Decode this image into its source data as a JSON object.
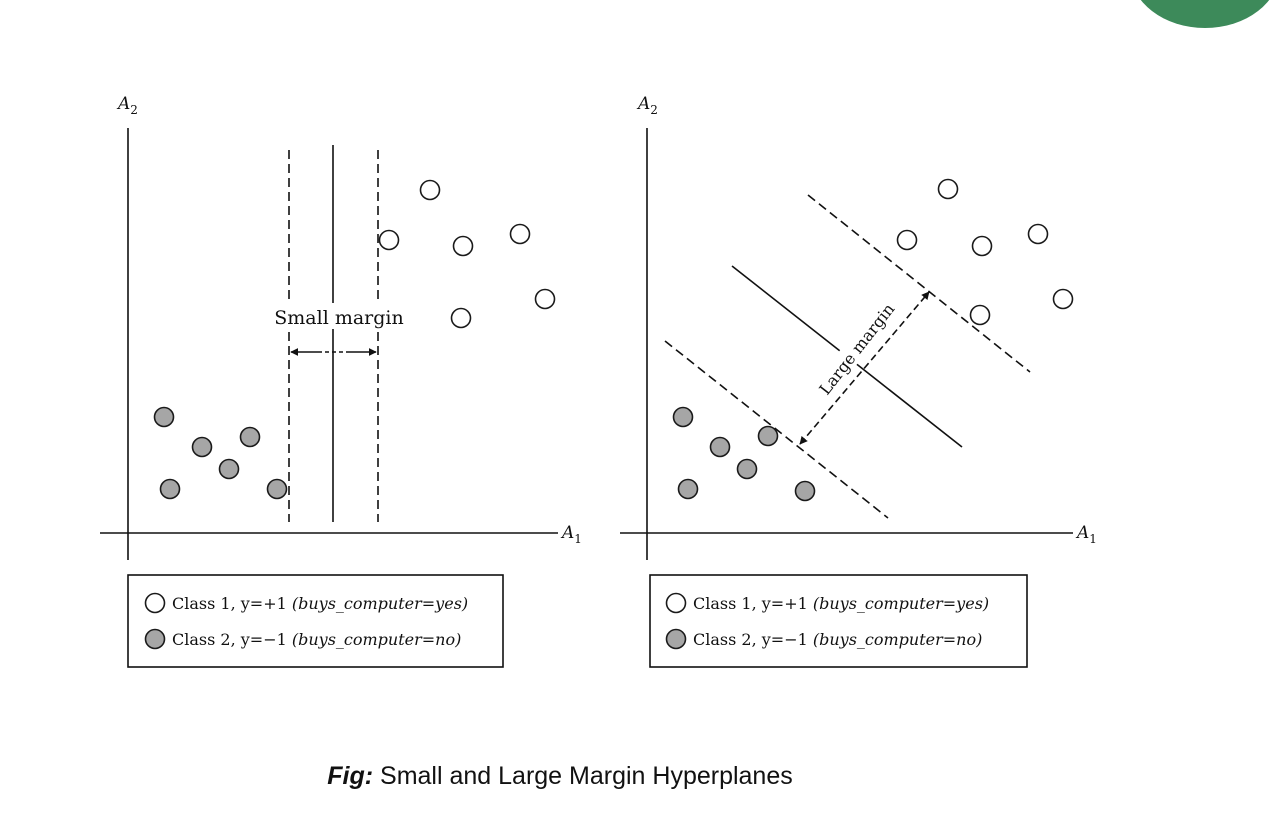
{
  "decor": {
    "badge_color": "#3d8a5a"
  },
  "colors": {
    "class1_fill": "#ffffff",
    "class2_fill": "#a6a6a6",
    "stroke": "#1a1a1a"
  },
  "panels": [
    {
      "id": "small",
      "x_axis_label": "A",
      "x_axis_sub": "1",
      "y_axis_label": "A",
      "y_axis_sub": "2",
      "margin_label": "Small margin",
      "legend": [
        {
          "class": "class1",
          "text": "Class 1, y=+1 ",
          "paren": "(buys_computer=yes)"
        },
        {
          "class": "class2",
          "text": "Class 2, y=−1 ",
          "paren": "(buys_computer=no)"
        }
      ]
    },
    {
      "id": "large",
      "x_axis_label": "A",
      "x_axis_sub": "1",
      "y_axis_label": "A",
      "y_axis_sub": "2",
      "margin_label": "Large margin",
      "legend": [
        {
          "class": "class1",
          "text": "Class 1, y=+1 ",
          "paren": "(buys_computer=yes)"
        },
        {
          "class": "class2",
          "text": "Class 2, y=−1 ",
          "paren": "(buys_computer=no)"
        }
      ]
    }
  ],
  "caption": {
    "lead": "Fig:",
    "text": " Small and Large Margin Hyperplanes"
  }
}
